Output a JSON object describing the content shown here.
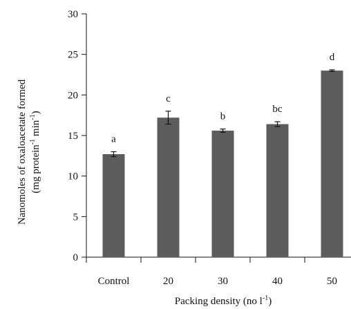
{
  "chart_data": {
    "type": "bar",
    "categories": [
      "Control",
      "20",
      "30",
      "40",
      "50"
    ],
    "values": [
      12.7,
      17.2,
      15.6,
      16.4,
      23.0
    ],
    "errors": [
      0.3,
      0.8,
      0.2,
      0.3,
      0.1
    ],
    "significance_letters": [
      "a",
      "c",
      "b",
      "bc",
      "d"
    ],
    "ylim": [
      0,
      30
    ],
    "yticks": [
      0,
      5,
      10,
      15,
      20,
      25,
      30
    ],
    "ylabel_line1": "Nanomoles of oxaloacetate formed",
    "ylabel_line2_pre": "(mg protein",
    "ylabel_line2_sup1": "-1",
    "ylabel_line2_mid": " min",
    "ylabel_line2_sup2": "-1",
    "ylabel_line2_post": ")",
    "xlabel_pre": "Packing density (no l",
    "xlabel_sup": "-1",
    "xlabel_post": ")",
    "bar_color": "#5c5c5c",
    "grid": false,
    "legend": "none"
  }
}
